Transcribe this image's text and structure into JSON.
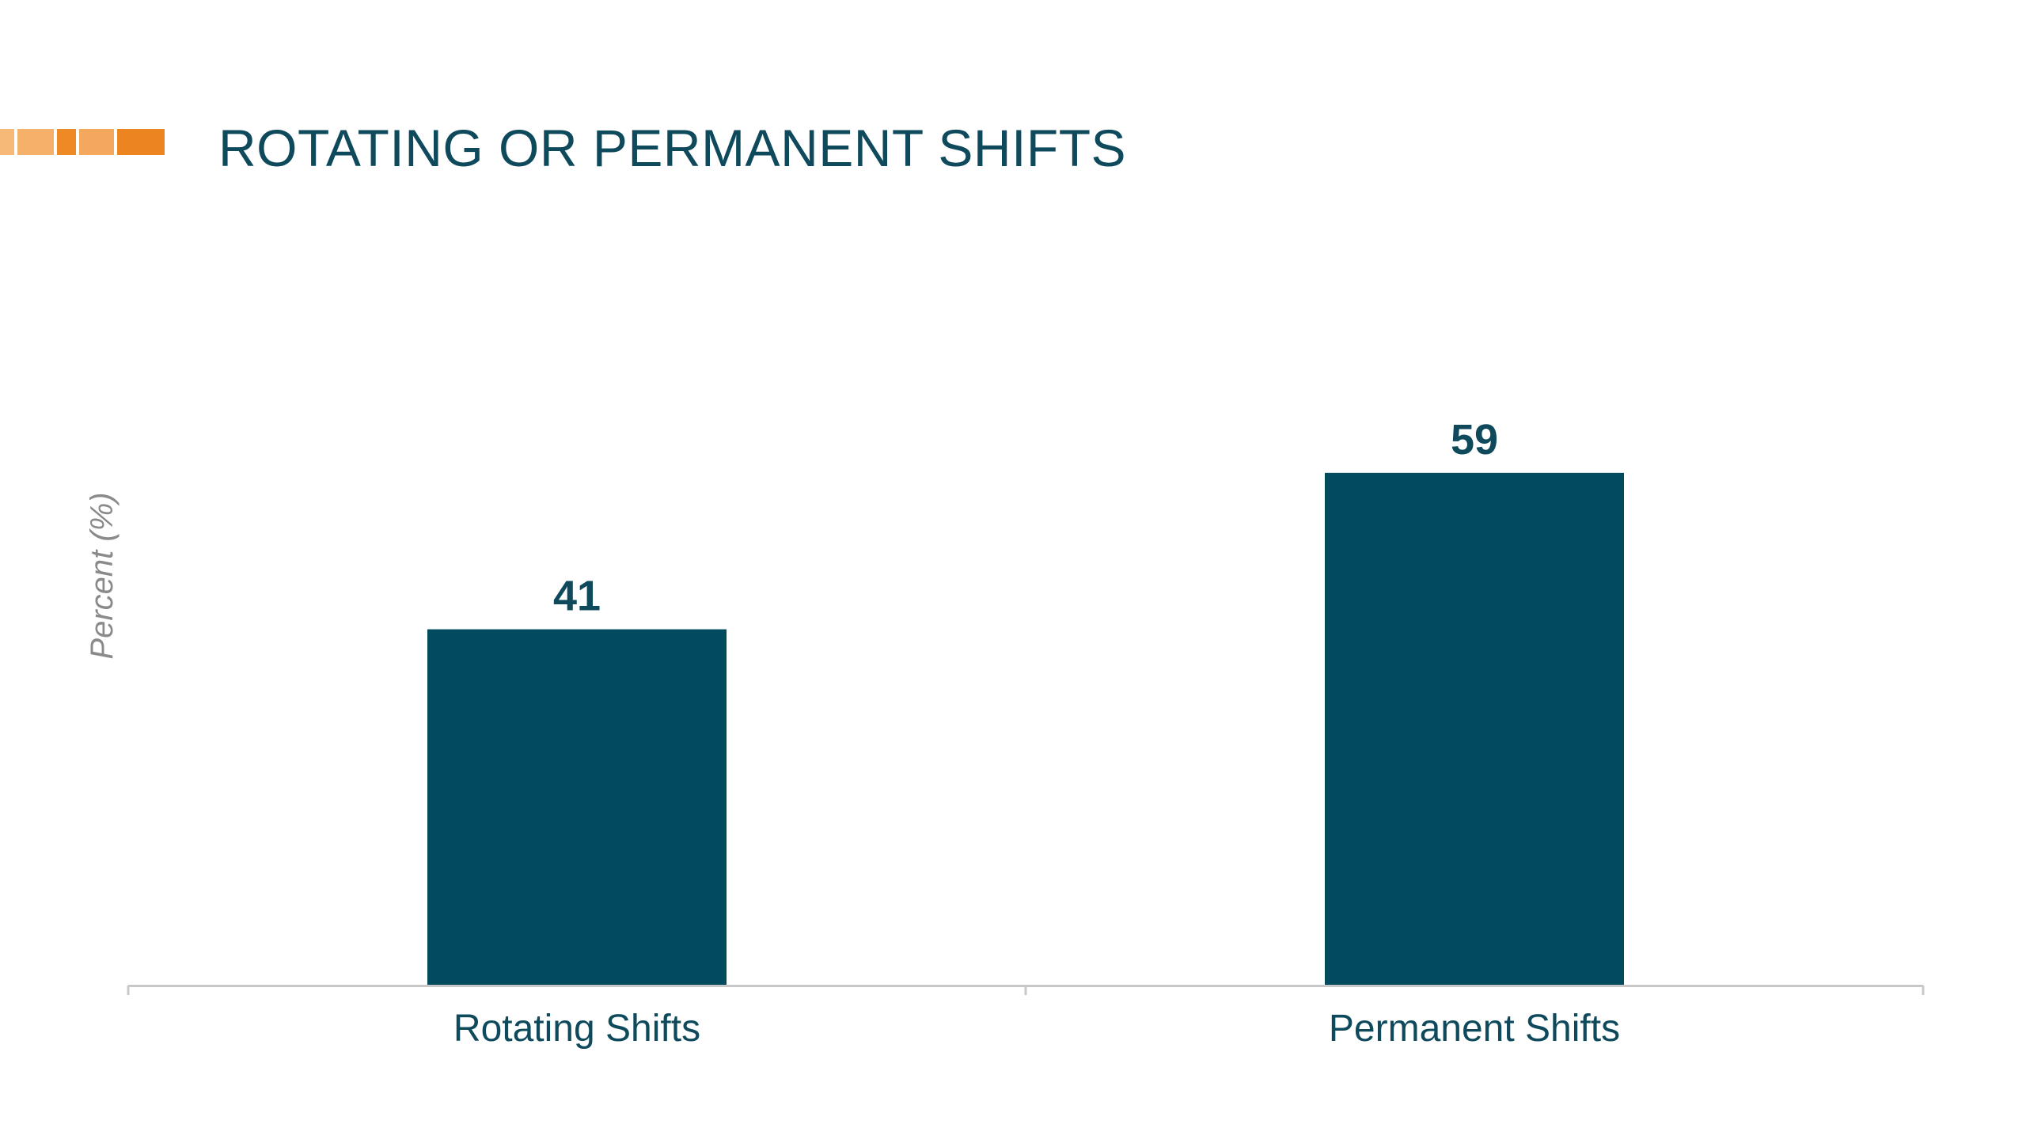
{
  "header": {
    "title": "ROTATING OR PERMANENT SHIFTS",
    "accent_color": "#f0922b"
  },
  "chart_data": {
    "type": "bar",
    "title": "ROTATING OR PERMANENT SHIFTS",
    "xlabel": "",
    "ylabel": "Percent (%)",
    "categories": [
      "Rotating Shifts",
      "Permanent Shifts"
    ],
    "values": [
      41,
      59
    ],
    "data_labels": [
      "41",
      "59"
    ],
    "ylim": [
      0,
      70
    ],
    "y_axis_visible": false,
    "grid": false,
    "legend": "none",
    "bar_color": "#024b5f",
    "label_color": "#0e4a5c",
    "axis_color": "#c8c8c8"
  }
}
